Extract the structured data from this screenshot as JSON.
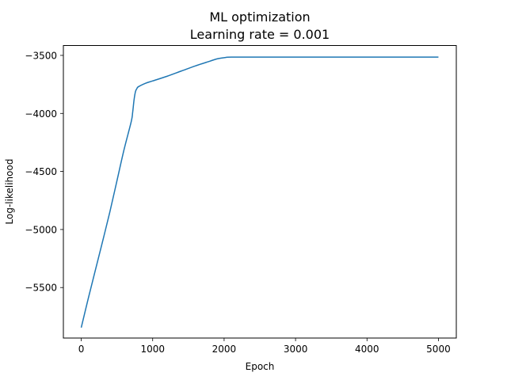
{
  "chart_data": {
    "type": "line",
    "title": "ML optimization",
    "subtitle": "Learning rate = 0.001",
    "xlabel": "Epoch",
    "ylabel": "Log-likelihood",
    "xlim": [
      -250,
      5250
    ],
    "ylim": [
      -5935,
      -3415
    ],
    "xticks": [
      0,
      1000,
      2000,
      3000,
      4000,
      5000
    ],
    "xtick_labels": [
      "0",
      "1000",
      "2000",
      "3000",
      "4000",
      "5000"
    ],
    "yticks": [
      -5500,
      -5000,
      -4500,
      -4000,
      -3500
    ],
    "ytick_labels": [
      "−5500",
      "−5000",
      "−4500",
      "−4000",
      "−3500"
    ],
    "grid": false,
    "series": [
      {
        "color": "#1f77b4",
        "x": [
          0,
          100,
          200,
          300,
          400,
          500,
          600,
          700,
          720,
          740,
          760,
          780,
          800,
          900,
          1000,
          1200,
          1400,
          1600,
          1800,
          1900,
          2000,
          2100,
          2500,
          3000,
          3500,
          4000,
          4500,
          5000
        ],
        "y": [
          -5845,
          -5590,
          -5345,
          -5100,
          -4850,
          -4580,
          -4310,
          -4070,
          -3990,
          -3880,
          -3810,
          -3785,
          -3770,
          -3740,
          -3720,
          -3680,
          -3635,
          -3590,
          -3550,
          -3530,
          -3520,
          -3515,
          -3515,
          -3515,
          -3515,
          -3515,
          -3515,
          -3515
        ]
      }
    ]
  }
}
